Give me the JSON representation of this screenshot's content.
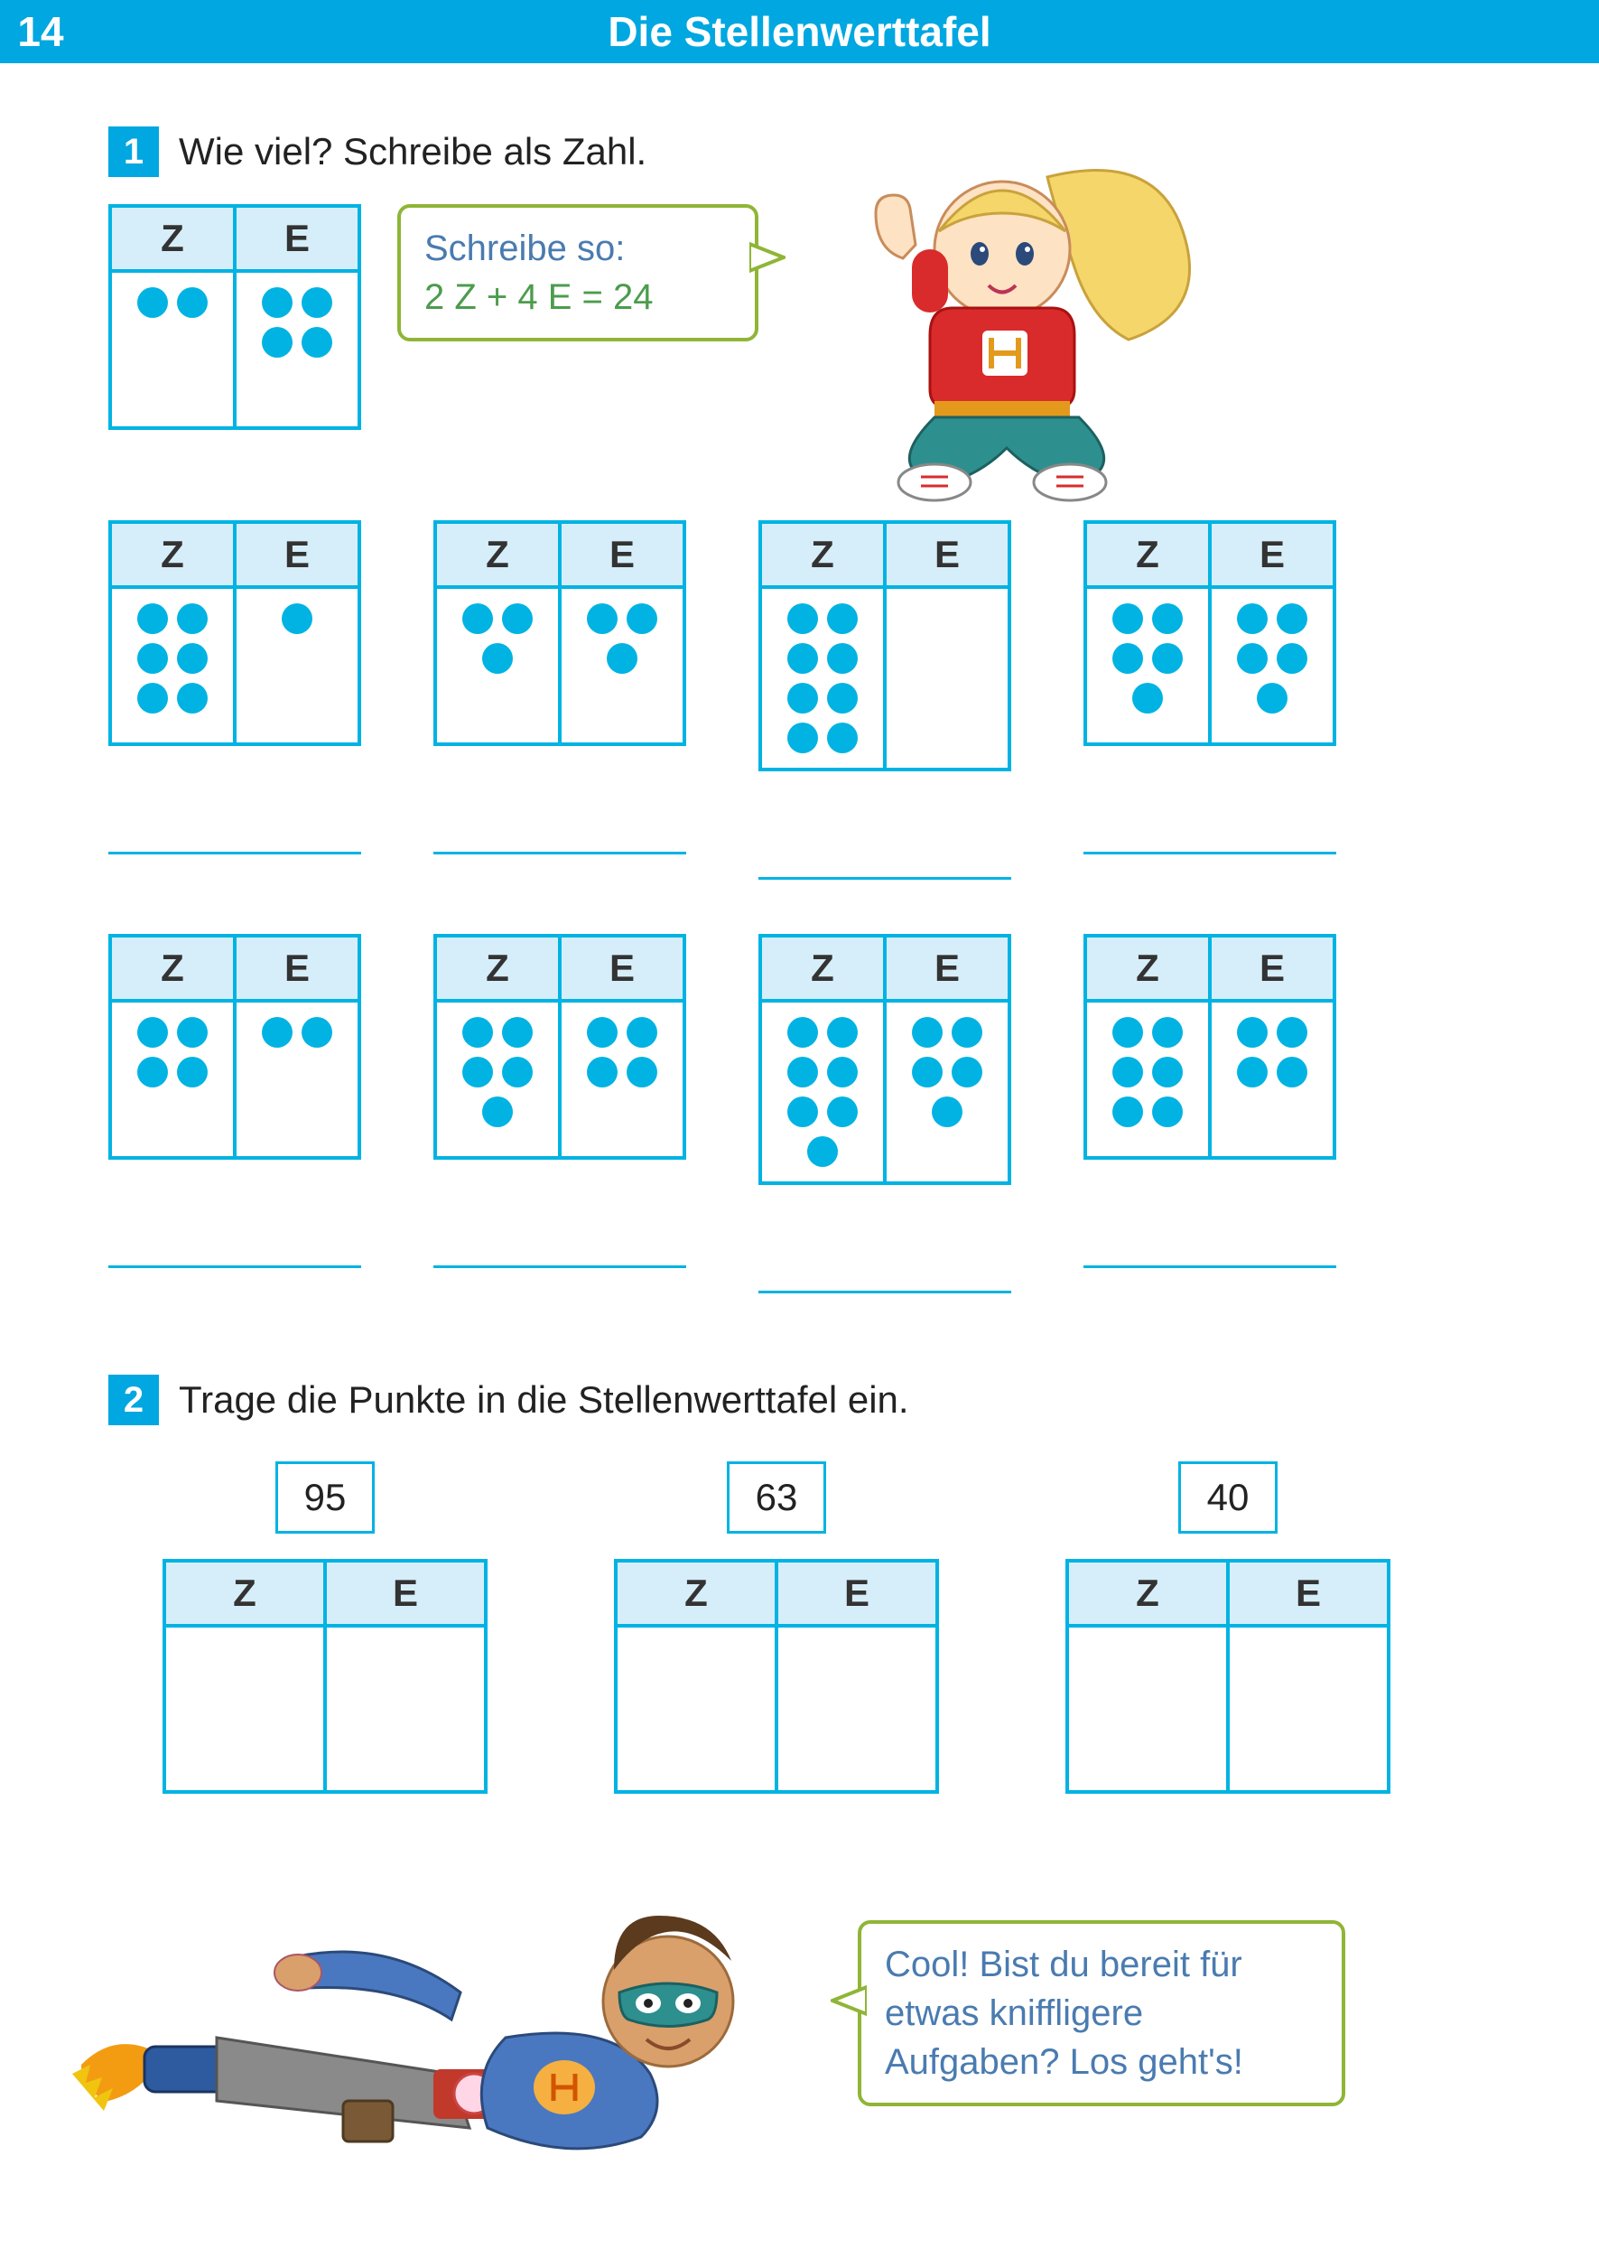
{
  "page_number": "14",
  "page_title": "Die Stellenwerttafel",
  "task1": {
    "number": "1",
    "text": "Wie viel? Schreibe als Zahl.",
    "bubble_line1": "Schreibe so:",
    "bubble_line2": "2 Z + 4 E = 24"
  },
  "headers": {
    "z": "Z",
    "e": "E"
  },
  "example": {
    "z": 2,
    "e": 4
  },
  "row1": [
    {
      "z": 6,
      "e": 1
    },
    {
      "z": 3,
      "e": 3
    },
    {
      "z": 8,
      "e": 0
    },
    {
      "z": 5,
      "e": 5
    }
  ],
  "row2": [
    {
      "z": 4,
      "e": 2
    },
    {
      "z": 5,
      "e": 4
    },
    {
      "z": 7,
      "e": 5
    },
    {
      "z": 6,
      "e": 4
    }
  ],
  "task2": {
    "number": "2",
    "text": "Trage die Punkte in die Stellenwerttafel ein.",
    "numbers": [
      "95",
      "63",
      "40"
    ],
    "bubble": "Cool! Bist du bereit für etwas kniffligere Aufgaben? Los geht's!"
  },
  "colors": {
    "cyan": "#00a7e0",
    "cyan_light": "#d6eef9",
    "cyan_bright": "#00b3e3",
    "bubble_border": "#8fb536"
  }
}
